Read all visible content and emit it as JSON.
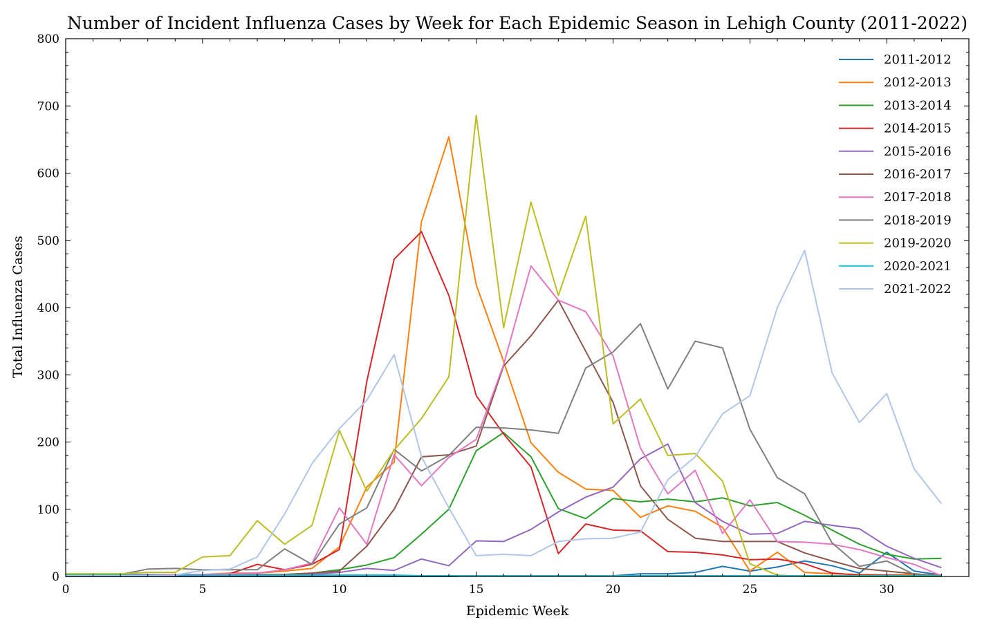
{
  "chart_data": {
    "type": "line",
    "title": "Number of Incident Influenza Cases by Week for Each Epidemic Season in Lehigh County (2011-2022)",
    "xlabel": "Epidemic Week",
    "ylabel": "Total Influenza Cases",
    "xlim": [
      0,
      33
    ],
    "ylim": [
      0,
      800
    ],
    "xticks": [
      0,
      5,
      10,
      15,
      20,
      25,
      30
    ],
    "yticks": [
      0,
      100,
      200,
      300,
      400,
      500,
      600,
      700,
      800
    ],
    "grid": false,
    "legend_position": "top-right",
    "series": [
      {
        "name": "2011-2012",
        "color": "#1f77b4",
        "values": [
          0,
          0,
          0,
          0,
          0,
          0,
          0,
          0,
          0,
          0,
          0,
          0,
          0,
          0,
          0,
          1,
          1,
          1,
          1,
          1,
          1,
          4,
          4,
          6,
          15,
          8,
          14,
          23,
          16,
          5,
          36,
          8,
          2
        ]
      },
      {
        "name": "2012-2013",
        "color": "#ff7f0e",
        "values": [
          2,
          3,
          2,
          3,
          3,
          3,
          5,
          5,
          8,
          12,
          44,
          133,
          170,
          528,
          654,
          434,
          320,
          199,
          155,
          130,
          128,
          88,
          105,
          97,
          73,
          8,
          36,
          6,
          4,
          3,
          2,
          3,
          2
        ]
      },
      {
        "name": "2013-2014",
        "color": "#2ca02c",
        "values": [
          1,
          1,
          1,
          1,
          1,
          1,
          2,
          2,
          3,
          5,
          10,
          17,
          28,
          63,
          100,
          187,
          214,
          178,
          101,
          86,
          116,
          111,
          115,
          111,
          117,
          105,
          110,
          91,
          69,
          48,
          33,
          26,
          27
        ]
      },
      {
        "name": "2014-2015",
        "color": "#d62728",
        "values": [
          2,
          2,
          2,
          2,
          2,
          2,
          4,
          18,
          10,
          18,
          40,
          290,
          472,
          513,
          418,
          269,
          212,
          163,
          34,
          78,
          69,
          68,
          37,
          36,
          32,
          25,
          26,
          19,
          5,
          2,
          2,
          1,
          1
        ]
      },
      {
        "name": "2015-2016",
        "color": "#9467bd",
        "values": [
          1,
          1,
          1,
          1,
          1,
          1,
          2,
          2,
          2,
          3,
          6,
          12,
          9,
          26,
          16,
          53,
          52,
          70,
          96,
          118,
          133,
          175,
          197,
          110,
          82,
          63,
          64,
          82,
          76,
          71,
          45,
          27,
          13
        ]
      },
      {
        "name": "2016-2017",
        "color": "#8c564b",
        "values": [
          2,
          2,
          2,
          2,
          2,
          2,
          3,
          3,
          3,
          5,
          8,
          45,
          100,
          178,
          181,
          194,
          313,
          358,
          411,
          335,
          259,
          135,
          85,
          57,
          52,
          52,
          52,
          35,
          23,
          12,
          8,
          4,
          1
        ]
      },
      {
        "name": "2017-2018",
        "color": "#e377c2",
        "values": [
          3,
          3,
          3,
          3,
          3,
          3,
          4,
          5,
          10,
          20,
          102,
          48,
          181,
          135,
          177,
          204,
          315,
          462,
          411,
          394,
          328,
          191,
          123,
          158,
          64,
          114,
          52,
          51,
          48,
          40,
          28,
          18,
          1
        ]
      },
      {
        "name": "2018-2019",
        "color": "#7f7f7f",
        "values": [
          3,
          3,
          3,
          11,
          12,
          10,
          10,
          10,
          41,
          18,
          78,
          102,
          189,
          157,
          180,
          222,
          221,
          218,
          213,
          310,
          334,
          376,
          279,
          350,
          340,
          219,
          147,
          123,
          50,
          15,
          23,
          3,
          1
        ]
      },
      {
        "name": "2019-2020",
        "color": "#bcbd22",
        "values": [
          4,
          4,
          4,
          6,
          6,
          29,
          31,
          83,
          48,
          76,
          217,
          127,
          188,
          235,
          297,
          686,
          370,
          557,
          418,
          536,
          227,
          264,
          180,
          183,
          142,
          19,
          2,
          0,
          0,
          0,
          0,
          0,
          0
        ]
      },
      {
        "name": "2020-2021",
        "color": "#17becf",
        "values": [
          2,
          2,
          2,
          2,
          2,
          2,
          2,
          2,
          2,
          2,
          2,
          2,
          2,
          1,
          1,
          1,
          1,
          1,
          1,
          1,
          1,
          1,
          1,
          1,
          1,
          1,
          1,
          1,
          1,
          1,
          1,
          1,
          1
        ]
      },
      {
        "name": "2021-2022",
        "color": "#aec7e8",
        "values": [
          1,
          1,
          1,
          1,
          2,
          9,
          11,
          29,
          93,
          168,
          220,
          262,
          330,
          178,
          102,
          31,
          33,
          31,
          52,
          56,
          57,
          66,
          144,
          178,
          242,
          269,
          400,
          485,
          303,
          229,
          272,
          160,
          108
        ]
      }
    ]
  }
}
